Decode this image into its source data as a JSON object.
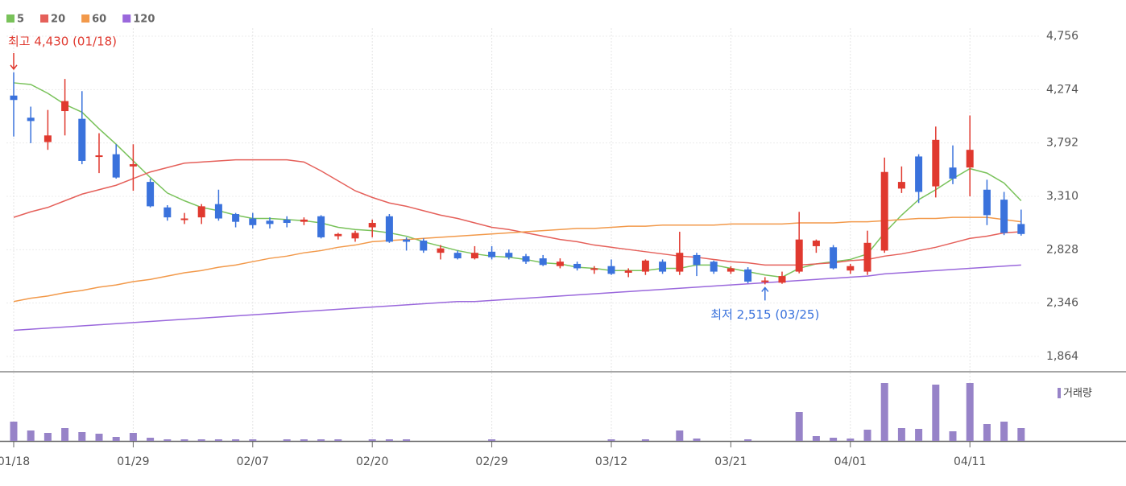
{
  "chart_data": {
    "type": "candlestick",
    "categories": [
      "01/18",
      null,
      null,
      null,
      null,
      null,
      null,
      "01/29",
      null,
      null,
      null,
      null,
      null,
      null,
      "02/07",
      null,
      null,
      null,
      null,
      null,
      null,
      "02/20",
      null,
      null,
      null,
      null,
      null,
      null,
      "02/29",
      null,
      null,
      null,
      null,
      null,
      null,
      "03/12",
      null,
      null,
      null,
      null,
      null,
      null,
      "03/21",
      null,
      null,
      null,
      null,
      null,
      null,
      "04/01",
      null,
      null,
      null,
      null,
      null,
      null,
      "04/11",
      null,
      null,
      null
    ],
    "open": [
      4220,
      4020,
      3800,
      4080,
      4010,
      3670,
      3690,
      3580,
      3440,
      3210,
      3100,
      3120,
      3240,
      3150,
      3110,
      3090,
      3100,
      3080,
      3130,
      2950,
      2930,
      3030,
      3130,
      2920,
      2910,
      2800,
      2800,
      2750,
      2810,
      2800,
      2770,
      2750,
      2680,
      2700,
      2650,
      2680,
      2620,
      2630,
      2720,
      2630,
      2780,
      2720,
      2630,
      2650,
      2540,
      2530,
      2630,
      2860,
      2850,
      2640,
      2630,
      2820,
      3380,
      3670,
      3400,
      3570,
      3570,
      3370,
      3280,
      3060
    ],
    "high": [
      4430,
      4120,
      4090,
      4370,
      4260,
      3880,
      3780,
      3780,
      3470,
      3230,
      3160,
      3240,
      3370,
      3160,
      3160,
      3120,
      3130,
      3120,
      3140,
      2980,
      3000,
      3100,
      3150,
      2940,
      2930,
      2870,
      2820,
      2860,
      2860,
      2830,
      2790,
      2780,
      2750,
      2720,
      2680,
      2740,
      2660,
      2740,
      2740,
      2990,
      2800,
      2730,
      2680,
      2670,
      2580,
      2630,
      3170,
      2920,
      2870,
      2700,
      3000,
      3660,
      3580,
      3690,
      3940,
      3770,
      4040,
      3460,
      3350,
      3190
    ],
    "low": [
      3850,
      3790,
      3730,
      3860,
      3600,
      3520,
      3470,
      3360,
      3210,
      3090,
      3060,
      3060,
      3090,
      3030,
      3020,
      3020,
      3030,
      3050,
      2930,
      2920,
      2900,
      2940,
      2890,
      2820,
      2800,
      2740,
      2740,
      2740,
      2740,
      2740,
      2700,
      2680,
      2660,
      2640,
      2610,
      2600,
      2580,
      2600,
      2610,
      2600,
      2590,
      2610,
      2610,
      2525,
      2515,
      2520,
      2615,
      2800,
      2650,
      2610,
      2600,
      2800,
      3340,
      3250,
      3300,
      3420,
      3310,
      3050,
      2960,
      2955
    ],
    "close": [
      4180,
      3990,
      3860,
      4170,
      3630,
      3680,
      3480,
      3600,
      3220,
      3120,
      3110,
      3220,
      3110,
      3080,
      3050,
      3060,
      3070,
      3100,
      2940,
      2970,
      2980,
      3070,
      2900,
      2900,
      2820,
      2840,
      2750,
      2800,
      2760,
      2760,
      2720,
      2690,
      2720,
      2660,
      2660,
      2610,
      2640,
      2730,
      2630,
      2800,
      2690,
      2630,
      2660,
      2540,
      2550,
      2590,
      2920,
      2910,
      2660,
      2680,
      2890,
      3530,
      3440,
      3350,
      3820,
      3470,
      3730,
      3140,
      2980,
      2970
    ],
    "up_color": "#e0392f",
    "down_color": "#3a72dc",
    "series": [
      {
        "name": "5",
        "color": "#79c25a",
        "values": [
          4335,
          4320,
          4240,
          4140,
          4070,
          3920,
          3780,
          3630,
          3480,
          3340,
          3270,
          3210,
          3180,
          3140,
          3110,
          3110,
          3100,
          3090,
          3070,
          3030,
          3010,
          3000,
          2980,
          2950,
          2900,
          2860,
          2820,
          2790,
          2770,
          2760,
          2740,
          2710,
          2700,
          2670,
          2660,
          2640,
          2640,
          2640,
          2660,
          2660,
          2690,
          2690,
          2660,
          2630,
          2600,
          2580,
          2660,
          2700,
          2720,
          2740,
          2790,
          2980,
          3140,
          3280,
          3370,
          3470,
          3560,
          3520,
          3430,
          3270
        ]
      },
      {
        "name": "20",
        "color": "#e5605a",
        "values": [
          3120,
          3170,
          3210,
          3270,
          3330,
          3370,
          3410,
          3470,
          3530,
          3570,
          3610,
          3620,
          3630,
          3640,
          3640,
          3640,
          3640,
          3620,
          3540,
          3450,
          3360,
          3300,
          3250,
          3220,
          3180,
          3140,
          3110,
          3070,
          3030,
          3010,
          2980,
          2950,
          2920,
          2900,
          2870,
          2850,
          2830,
          2810,
          2790,
          2770,
          2760,
          2740,
          2720,
          2710,
          2690,
          2690,
          2690,
          2700,
          2710,
          2730,
          2740,
          2770,
          2790,
          2820,
          2850,
          2890,
          2930,
          2950,
          2980,
          2990
        ]
      },
      {
        "name": "60",
        "color": "#f2994a",
        "values": [
          2360,
          2390,
          2410,
          2440,
          2460,
          2490,
          2510,
          2540,
          2560,
          2590,
          2620,
          2640,
          2670,
          2690,
          2720,
          2750,
          2770,
          2800,
          2820,
          2850,
          2870,
          2900,
          2910,
          2920,
          2930,
          2940,
          2950,
          2960,
          2970,
          2980,
          2990,
          3000,
          3010,
          3020,
          3020,
          3030,
          3040,
          3040,
          3050,
          3050,
          3050,
          3050,
          3060,
          3060,
          3060,
          3060,
          3070,
          3070,
          3070,
          3080,
          3080,
          3090,
          3100,
          3110,
          3110,
          3120,
          3120,
          3120,
          3100,
          3080
        ]
      },
      {
        "name": "120",
        "color": "#9a68dc",
        "values": [
          2100,
          2110,
          2120,
          2130,
          2140,
          2150,
          2160,
          2170,
          2180,
          2190,
          2200,
          2210,
          2220,
          2230,
          2240,
          2250,
          2260,
          2270,
          2280,
          2290,
          2300,
          2310,
          2320,
          2330,
          2340,
          2350,
          2360,
          2360,
          2370,
          2380,
          2390,
          2400,
          2410,
          2420,
          2430,
          2440,
          2450,
          2460,
          2470,
          2480,
          2490,
          2500,
          2510,
          2520,
          2530,
          2540,
          2550,
          2560,
          2570,
          2580,
          2590,
          2610,
          2620,
          2630,
          2640,
          2650,
          2660,
          2670,
          2680,
          2690
        ]
      }
    ],
    "volume": {
      "name": "거래량",
      "color": "#9783c8",
      "values": [
        24,
        13,
        10,
        16,
        11,
        9,
        5,
        10,
        4,
        2,
        2,
        2,
        2,
        2,
        2,
        0,
        2,
        2,
        2,
        2,
        0,
        2,
        2,
        2,
        0,
        0,
        0,
        0,
        2,
        0,
        0,
        0,
        0,
        0,
        0,
        2,
        0,
        2,
        0,
        13,
        3,
        0,
        0,
        2,
        0,
        0,
        36,
        6,
        4,
        3,
        14,
        72,
        16,
        15,
        70,
        12,
        72,
        21,
        24,
        16
      ]
    },
    "ylim": [
      1864,
      4756
    ],
    "yticks": [
      {
        "value": 4756,
        "label": "4,756"
      },
      {
        "value": 4274,
        "label": "4,274"
      },
      {
        "value": 3792,
        "label": "3,792"
      },
      {
        "value": 3310,
        "label": "3,310"
      },
      {
        "value": 2828,
        "label": "2,828"
      },
      {
        "value": 2346,
        "label": "2,346"
      },
      {
        "value": 1864,
        "label": "1,864"
      }
    ],
    "grid": true,
    "annotations": [
      {
        "label": "최고 4,430 (01/18)",
        "value": 4430,
        "kind": "high",
        "color": "#e0392f"
      },
      {
        "label": "최저 2,515 (03/25)",
        "value": 2515,
        "kind": "low",
        "color": "#3a72dc"
      }
    ]
  }
}
